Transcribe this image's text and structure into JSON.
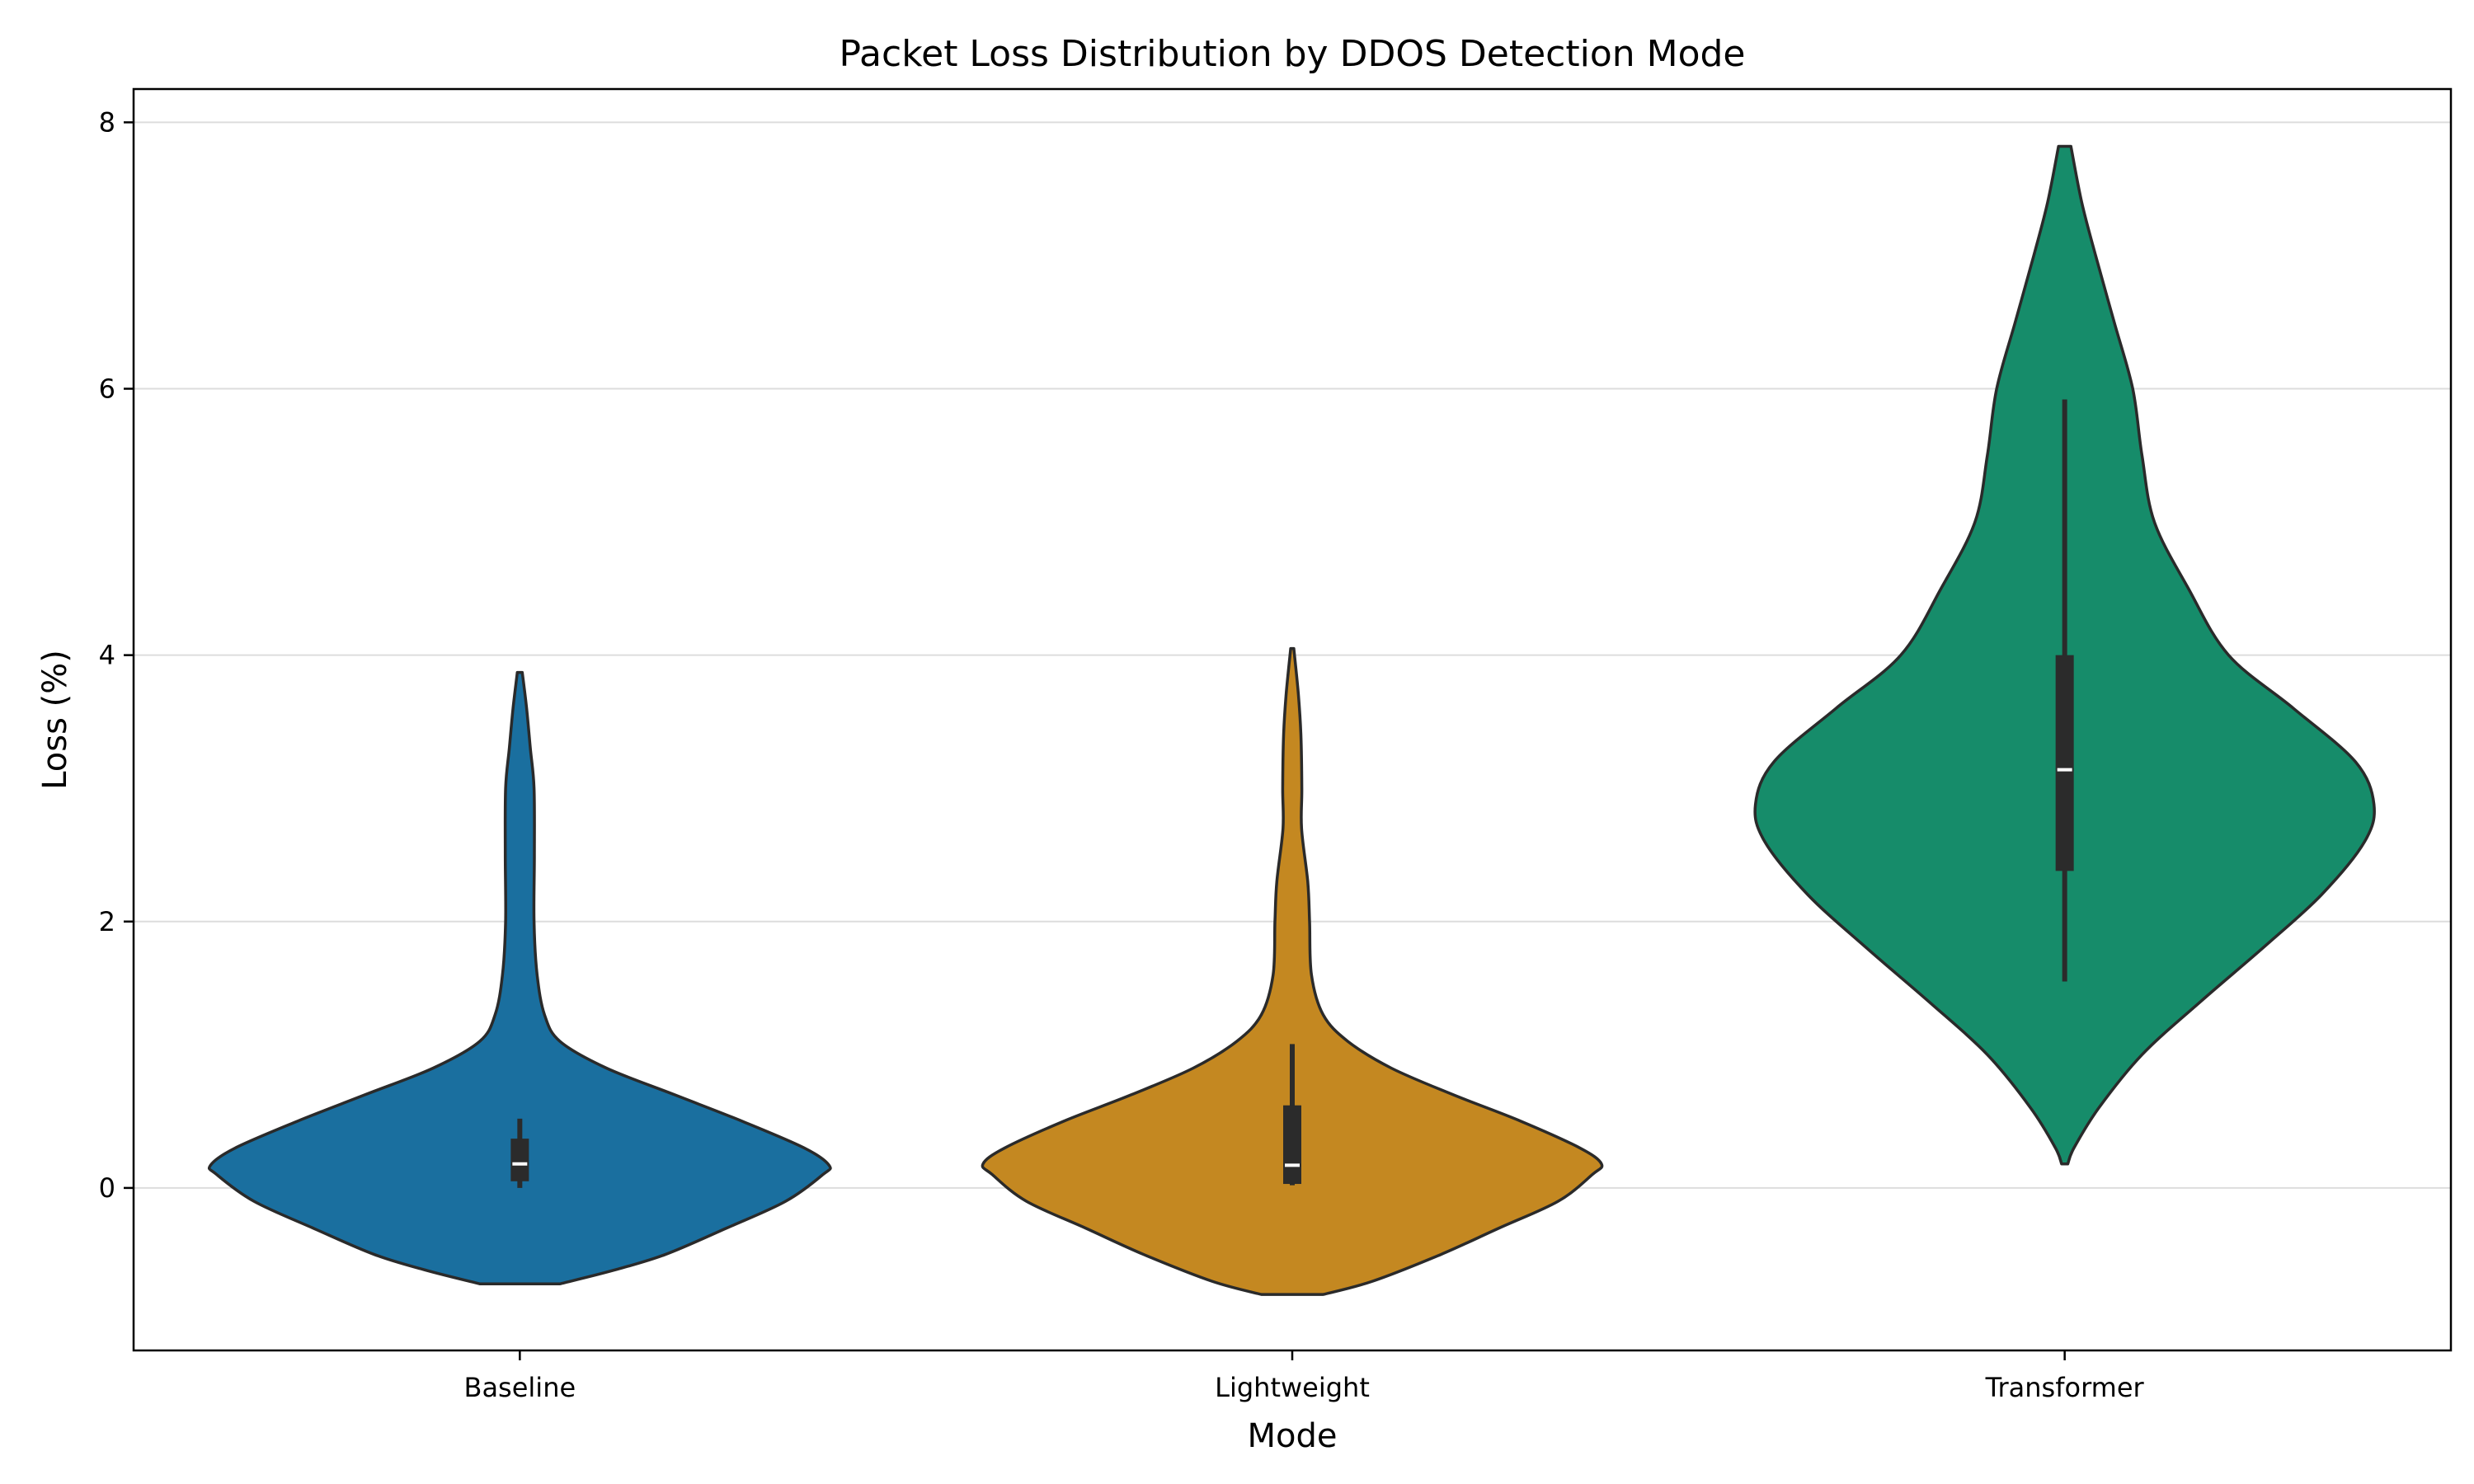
{
  "chart_data": {
    "type": "violin",
    "title": "Packet Loss Distribution by DDOS Detection Mode",
    "xlabel": "Mode",
    "ylabel": "Loss (%)",
    "categories": [
      "Baseline",
      "Lightweight",
      "Transformer"
    ],
    "ylim": [
      -1.22,
      8.25
    ],
    "yticks": [
      0,
      2,
      4,
      6,
      8
    ],
    "grid": "y",
    "colors": [
      "#1a6f9f",
      "#c48821",
      "#168c6a"
    ],
    "series": [
      {
        "category": "Baseline",
        "violin_min": -0.72,
        "violin_max": 3.87,
        "density_profile": [
          [
            -0.72,
            0.13
          ],
          [
            -0.62,
            0.3
          ],
          [
            -0.5,
            0.47
          ],
          [
            -0.3,
            0.67
          ],
          [
            -0.1,
            0.86
          ],
          [
            0.1,
            0.98
          ],
          [
            0.17,
            1.0
          ],
          [
            0.3,
            0.92
          ],
          [
            0.5,
            0.72
          ],
          [
            0.7,
            0.5
          ],
          [
            0.9,
            0.28
          ],
          [
            1.1,
            0.13
          ],
          [
            1.3,
            0.08
          ],
          [
            1.6,
            0.056
          ],
          [
            2.0,
            0.046
          ],
          [
            2.5,
            0.047
          ],
          [
            3.0,
            0.046
          ],
          [
            3.3,
            0.034
          ],
          [
            3.6,
            0.022
          ],
          [
            3.87,
            0.008
          ]
        ],
        "whisker_low": 0.0,
        "q1": 0.05,
        "median": 0.18,
        "q3": 0.37,
        "whisker_high": 0.52
      },
      {
        "category": "Lightweight",
        "violin_min": -0.8,
        "violin_max": 4.05,
        "density_profile": [
          [
            -0.8,
            0.1
          ],
          [
            -0.7,
            0.26
          ],
          [
            -0.5,
            0.48
          ],
          [
            -0.3,
            0.67
          ],
          [
            -0.1,
            0.86
          ],
          [
            0.1,
            0.97
          ],
          [
            0.18,
            1.0
          ],
          [
            0.3,
            0.93
          ],
          [
            0.5,
            0.74
          ],
          [
            0.7,
            0.52
          ],
          [
            0.9,
            0.32
          ],
          [
            1.1,
            0.18
          ],
          [
            1.3,
            0.1
          ],
          [
            1.6,
            0.062
          ],
          [
            2.0,
            0.056
          ],
          [
            2.3,
            0.05
          ],
          [
            2.7,
            0.03
          ],
          [
            3.0,
            0.031
          ],
          [
            3.4,
            0.028
          ],
          [
            3.7,
            0.02
          ],
          [
            4.05,
            0.005
          ]
        ],
        "whisker_low": 0.02,
        "q1": 0.03,
        "median": 0.17,
        "q3": 0.62,
        "whisker_high": 1.08
      },
      {
        "category": "Transformer",
        "violin_min": 0.18,
        "violin_max": 7.82,
        "density_profile": [
          [
            0.18,
            0.01
          ],
          [
            0.3,
            0.03
          ],
          [
            0.6,
            0.11
          ],
          [
            1.0,
            0.25
          ],
          [
            1.4,
            0.44
          ],
          [
            1.8,
            0.64
          ],
          [
            2.2,
            0.83
          ],
          [
            2.6,
            0.97
          ],
          [
            2.88,
            1.0
          ],
          [
            3.2,
            0.94
          ],
          [
            3.6,
            0.74
          ],
          [
            4.0,
            0.53
          ],
          [
            4.5,
            0.4
          ],
          [
            5.0,
            0.29
          ],
          [
            5.5,
            0.25
          ],
          [
            6.0,
            0.22
          ],
          [
            6.5,
            0.16
          ],
          [
            7.0,
            0.1
          ],
          [
            7.4,
            0.055
          ],
          [
            7.82,
            0.02
          ]
        ],
        "whisker_low": 1.55,
        "q1": 2.38,
        "median": 3.14,
        "q3": 4.0,
        "whisker_high": 5.92
      }
    ]
  }
}
